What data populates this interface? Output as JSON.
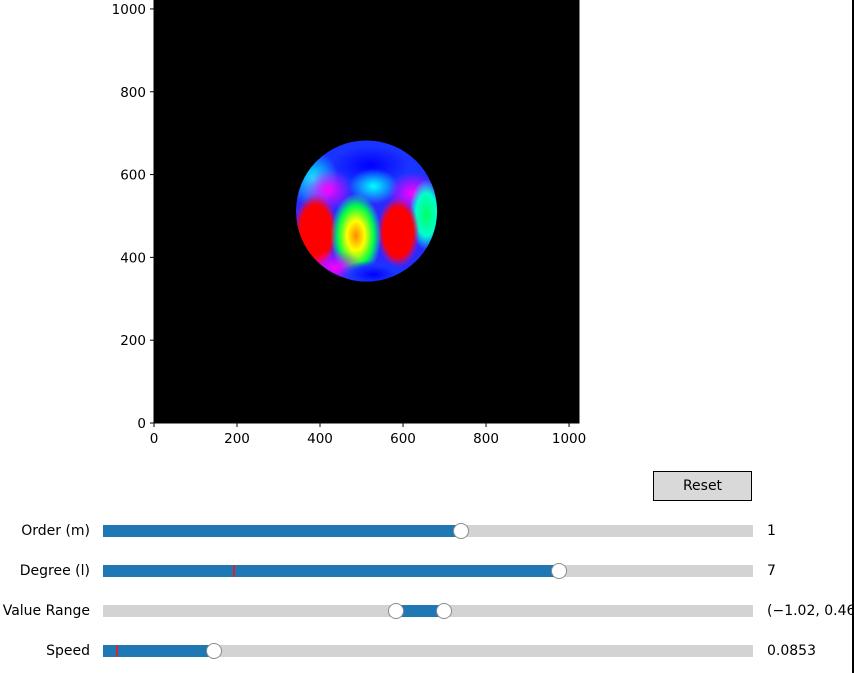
{
  "plot": {
    "type": "image",
    "x_ticks": [
      "0",
      "200",
      "400",
      "600",
      "800",
      "1000"
    ],
    "y_ticks": [
      "0",
      "200",
      "400",
      "600",
      "800",
      "1000"
    ],
    "xlim": [
      0,
      1024
    ],
    "ylim": [
      0,
      1024
    ],
    "background": "#000000",
    "sphere": {
      "center": [
        512,
        512
      ],
      "radius": 170,
      "colormap": "hsv"
    }
  },
  "reset_label": "Reset",
  "sliders": [
    {
      "label": "Order (m)",
      "value_text": "1",
      "fill_from": 0,
      "fill_to": 0.551,
      "handles": [
        0.551
      ],
      "marker": null
    },
    {
      "label": "Degree (l)",
      "value_text": "7",
      "fill_from": 0,
      "fill_to": 0.701,
      "handles": [
        0.701
      ],
      "marker": 0.201
    },
    {
      "label": "Value Range",
      "value_text": "(−1.02, 0.46",
      "fill_from": 0.451,
      "fill_to": 0.524,
      "handles": [
        0.451,
        0.524
      ],
      "marker": null
    },
    {
      "label": "Speed",
      "value_text": "0.0853",
      "fill_from": 0,
      "fill_to": 0.171,
      "handles": [
        0.171
      ],
      "marker": 0.021
    }
  ],
  "colors": {
    "accent": "#1f77b4",
    "track": "#d3d3d3",
    "marker": "#d62728",
    "button": "#d9d9d9"
  }
}
